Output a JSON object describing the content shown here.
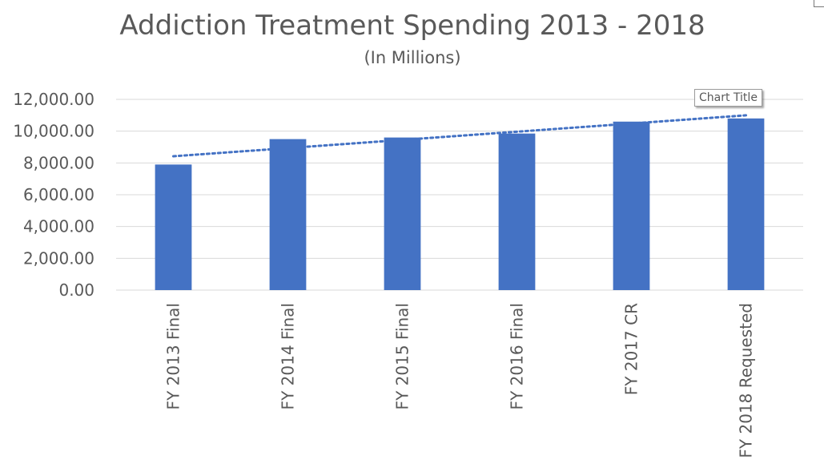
{
  "chart_data": {
    "type": "bar",
    "title": "Addiction Treatment Spending 2013 - 2018",
    "subtitle": "(In Millions)",
    "categories": [
      "FY 2013 Final",
      "FY 2014 Final",
      "FY 2015 Final",
      "FY 2016 Final",
      "FY 2017 CR",
      "FY 2018 Requested"
    ],
    "values": [
      7900,
      9500,
      9600,
      9850,
      10600,
      10800
    ],
    "trendline": {
      "type": "linear",
      "style": "dotted"
    },
    "ylim": [
      0,
      12000
    ],
    "yticks": [
      0,
      2000,
      4000,
      6000,
      8000,
      10000,
      12000
    ],
    "ytick_labels": [
      "0.00",
      "2,000.00",
      "4,000.00",
      "6,000.00",
      "8,000.00",
      "10,000.00",
      "12,000.00"
    ],
    "xlabel": "",
    "ylabel": "",
    "grid": true,
    "bar_color": "#4472C4",
    "trendline_color": "#4472C4",
    "gridline_color": "#d9d9d9",
    "axis_text_color": "#595959"
  },
  "tooltip": {
    "text": "Chart Title"
  }
}
